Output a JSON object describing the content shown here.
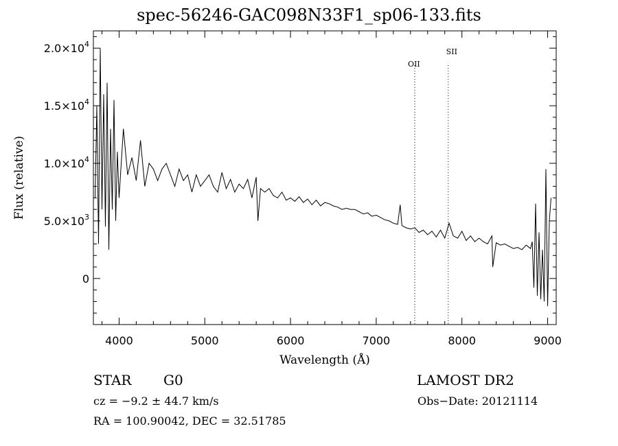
{
  "chart_data": {
    "type": "line",
    "title": "spec-56246-GAC098N33F1_sp06-133.fits",
    "xlabel": "Wavelength (Å)",
    "ylabel": "Flux (relative)",
    "xlim": [
      3700,
      9100
    ],
    "ylim": [
      -4000,
      21500
    ],
    "x_ticks": [
      4000,
      5000,
      6000,
      7000,
      8000,
      9000
    ],
    "x_tick_labels": [
      "4000",
      "5000",
      "6000",
      "7000",
      "8000",
      "9000"
    ],
    "y_ticks": [
      {
        "value": 0,
        "mantissa": "0",
        "exp": ""
      },
      {
        "value": 5000,
        "mantissa": "5.0×10",
        "exp": "3"
      },
      {
        "value": 10000,
        "mantissa": "1.0×10",
        "exp": "4"
      },
      {
        "value": 15000,
        "mantissa": "1.5×10",
        "exp": "4"
      },
      {
        "value": 20000,
        "mantissa": "2.0×10",
        "exp": "4"
      }
    ],
    "lines": [
      {
        "label": "OII",
        "wavelength": 7450
      },
      {
        "label": "SII",
        "wavelength": 7840
      }
    ],
    "series": [
      {
        "name": "flux",
        "x": [
          3720,
          3740,
          3760,
          3780,
          3800,
          3820,
          3840,
          3860,
          3880,
          3900,
          3920,
          3940,
          3960,
          3980,
          4000,
          4050,
          4100,
          4150,
          4200,
          4250,
          4300,
          4350,
          4400,
          4450,
          4500,
          4550,
          4600,
          4650,
          4700,
          4750,
          4800,
          4850,
          4900,
          4950,
          5000,
          5050,
          5100,
          5150,
          5200,
          5250,
          5300,
          5350,
          5400,
          5450,
          5500,
          5550,
          5600,
          5620,
          5650,
          5700,
          5750,
          5800,
          5850,
          5900,
          5950,
          6000,
          6050,
          6100,
          6150,
          6200,
          6250,
          6300,
          6350,
          6400,
          6450,
          6500,
          6550,
          6600,
          6650,
          6700,
          6750,
          6800,
          6850,
          6900,
          6950,
          7000,
          7050,
          7100,
          7150,
          7200,
          7250,
          7280,
          7300,
          7350,
          7400,
          7450,
          7500,
          7550,
          7600,
          7650,
          7700,
          7750,
          7800,
          7850,
          7900,
          7950,
          8000,
          8050,
          8100,
          8150,
          8200,
          8250,
          8300,
          8350,
          8360,
          8400,
          8450,
          8500,
          8550,
          8600,
          8650,
          8700,
          8750,
          8800,
          8820,
          8840,
          8860,
          8880,
          8900,
          8920,
          8940,
          8960,
          8980,
          9000,
          9020,
          9040
        ],
        "y": [
          7000,
          15000,
          3000,
          20000,
          6000,
          16000,
          4500,
          17000,
          2500,
          13000,
          6000,
          15500,
          5000,
          11000,
          7000,
          13000,
          9000,
          10500,
          8500,
          12000,
          8000,
          10000,
          9500,
          8500,
          9500,
          10000,
          9000,
          8000,
          9500,
          8500,
          9000,
          7500,
          9000,
          8000,
          8500,
          9000,
          8000,
          7500,
          9200,
          7800,
          8600,
          7500,
          8200,
          7800,
          8600,
          7000,
          8800,
          5000,
          7800,
          7500,
          7800,
          7200,
          7000,
          7500,
          6800,
          7000,
          6700,
          7100,
          6600,
          6900,
          6400,
          6800,
          6300,
          6600,
          6500,
          6300,
          6200,
          6000,
          6100,
          6000,
          6000,
          5800,
          5600,
          5700,
          5400,
          5500,
          5300,
          5100,
          5000,
          4800,
          4700,
          6400,
          4600,
          4400,
          4300,
          4400,
          4000,
          4200,
          3800,
          4100,
          3600,
          4200,
          3500,
          4800,
          3700,
          3500,
          4100,
          3300,
          3700,
          3200,
          3500,
          3200,
          3000,
          3700,
          1000,
          3100,
          2900,
          3000,
          2800,
          2600,
          2700,
          2500,
          2900,
          2600,
          3200,
          -800,
          6500,
          -1500,
          4000,
          -1800,
          2500,
          -2000,
          9500,
          -2400,
          5000,
          7000
        ]
      }
    ]
  },
  "info": {
    "object_type": "STAR",
    "subclass": "G0",
    "survey": "LAMOST DR2",
    "redshift": "cz = −9.2 ± 44.7 km/s",
    "obs_date": "Obs−Date: 20121114",
    "coords": "RA = 100.90042, DEC =  32.51785"
  }
}
